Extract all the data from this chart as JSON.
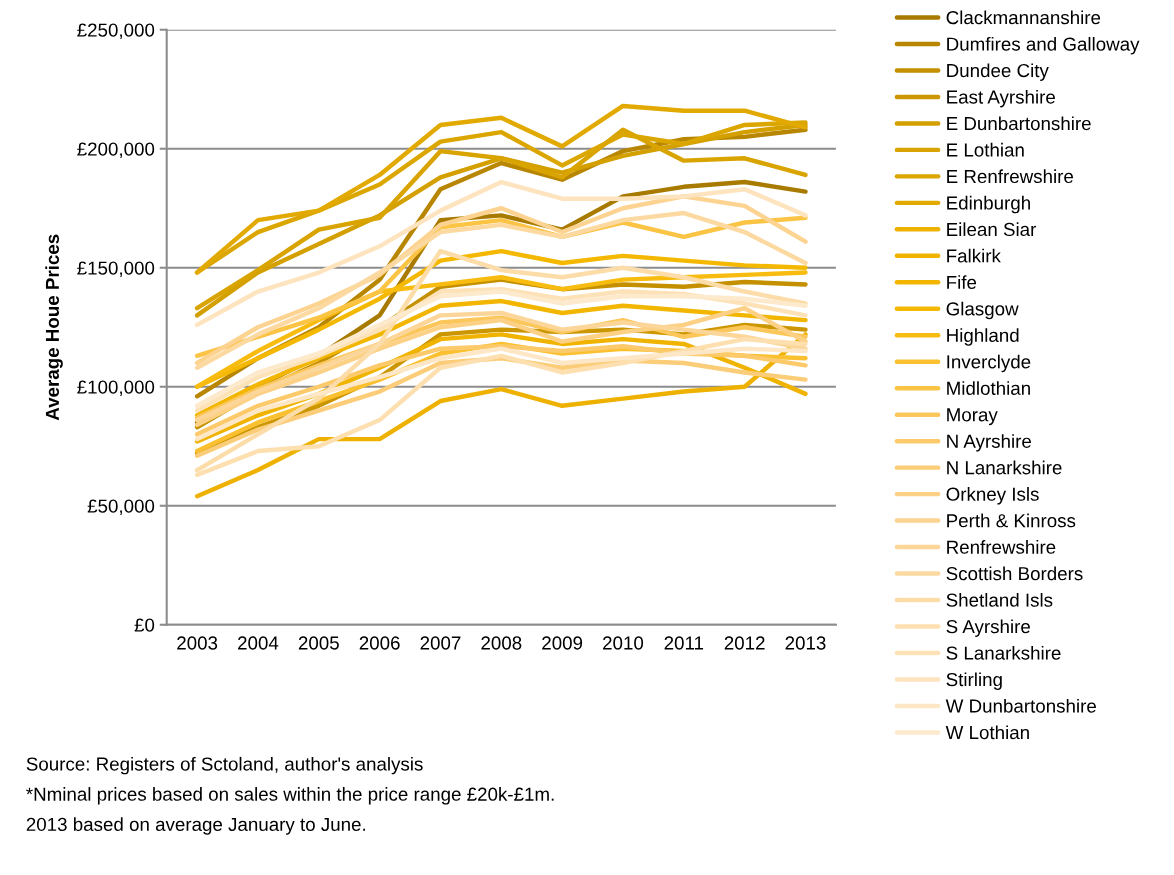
{
  "chart_data": {
    "type": "line",
    "ylabel": "Average Houe Prices",
    "categories": [
      "2003",
      "2004",
      "2005",
      "2006",
      "2007",
      "2008",
      "2009",
      "2010",
      "2011",
      "2012",
      "2013"
    ],
    "ylim": [
      0,
      250000
    ],
    "yticks": [
      {
        "value": 0,
        "label": "£0"
      },
      {
        "value": 50000,
        "label": "£50,000"
      },
      {
        "value": 100000,
        "label": "£100,000"
      },
      {
        "value": 150000,
        "label": "£150,000"
      },
      {
        "value": 200000,
        "label": "£200,000"
      },
      {
        "value": 250000,
        "label": "£250,000"
      }
    ],
    "grid": "y",
    "legend": "right",
    "marker": "none",
    "line_style": "solid",
    "series": [
      {
        "name": "Clackmannanshire",
        "color": "#a87b00",
        "values": [
          85000,
          100000,
          113000,
          130000,
          170000,
          172000,
          166000,
          180000,
          184000,
          186000,
          182000
        ]
      },
      {
        "name": "Dumfires and Galloway",
        "color": "#b88600",
        "values": [
          96000,
          112000,
          125000,
          145000,
          183000,
          194000,
          187000,
          199000,
          204000,
          205000,
          208000
        ]
      },
      {
        "name": "Dundee City",
        "color": "#c49000",
        "values": [
          83000,
          98000,
          110000,
          125000,
          142000,
          145000,
          141000,
          143000,
          142000,
          144000,
          143000
        ]
      },
      {
        "name": "East Ayrshire",
        "color": "#cc9600",
        "values": [
          72000,
          83000,
          92000,
          104000,
          122000,
          124000,
          123000,
          124000,
          122000,
          126000,
          124000
        ]
      },
      {
        "name": "E Dunbartonshire",
        "color": "#d4a000",
        "values": [
          130000,
          148000,
          160000,
          172000,
          188000,
          196000,
          190000,
          197000,
          202000,
          207000,
          210000
        ]
      },
      {
        "name": "E Lothian",
        "color": "#d9a300",
        "values": [
          133000,
          149000,
          166000,
          171000,
          199000,
          196000,
          188000,
          208000,
          195000,
          196000,
          189000
        ]
      },
      {
        "name": "E Renfrewshire",
        "color": "#dca600",
        "values": [
          148000,
          165000,
          174000,
          185000,
          203000,
          207000,
          193000,
          206000,
          202000,
          210000,
          211000
        ]
      },
      {
        "name": "Edinburgh",
        "color": "#e2aa00",
        "values": [
          148000,
          170000,
          174000,
          189000,
          210000,
          213000,
          201000,
          218000,
          216000,
          216000,
          209000
        ]
      },
      {
        "name": "Eilean Siar",
        "color": "#eeb100",
        "values": [
          54000,
          65000,
          78000,
          78000,
          94000,
          99000,
          92000,
          95000,
          98000,
          100000,
          122000
        ]
      },
      {
        "name": "Falkirk",
        "color": "#f0b400",
        "values": [
          77000,
          88000,
          97000,
          108000,
          120000,
          122000,
          118000,
          120000,
          118000,
          108000,
          97000
        ]
      },
      {
        "name": "Fife",
        "color": "#f2b600",
        "values": [
          88000,
          101000,
          112000,
          122000,
          134000,
          136000,
          131000,
          134000,
          132000,
          130000,
          128000
        ]
      },
      {
        "name": "Glasgow",
        "color": "#f5b800",
        "values": [
          100000,
          112000,
          124000,
          137000,
          153000,
          157000,
          152000,
          155000,
          153000,
          151000,
          150000
        ]
      },
      {
        "name": "Highland",
        "color": "#f8bc10",
        "values": [
          100000,
          115000,
          128000,
          140000,
          143000,
          146000,
          141000,
          145000,
          146000,
          147000,
          148000
        ]
      },
      {
        "name": "Inverclyde",
        "color": "#fac030",
        "values": [
          73000,
          85000,
          94000,
          103000,
          114000,
          118000,
          114000,
          116000,
          115000,
          113000,
          112000
        ]
      },
      {
        "name": "Midlothian",
        "color": "#fbc445",
        "values": [
          113000,
          121000,
          129000,
          140000,
          167000,
          170000,
          163000,
          169000,
          163000,
          169000,
          171000
        ]
      },
      {
        "name": "Moray",
        "color": "#fcc75a",
        "values": [
          87000,
          99000,
          109000,
          118000,
          127000,
          129000,
          123000,
          128000,
          121000,
          125000,
          121000
        ]
      },
      {
        "name": "N Ayrshire",
        "color": "#fcca6a",
        "values": [
          80000,
          92000,
          100000,
          109000,
          116000,
          117000,
          115000,
          117000,
          114000,
          113000,
          109000
        ]
      },
      {
        "name": "N Lanarkshire",
        "color": "#fccd78",
        "values": [
          71000,
          82000,
          90000,
          98000,
          110000,
          112000,
          108000,
          111000,
          110000,
          106000,
          103000
        ]
      },
      {
        "name": "Orkney Isls",
        "color": "#fcd085",
        "values": [
          84000,
          97000,
          106000,
          116000,
          125000,
          128000,
          119000,
          123000,
          126000,
          133000,
          119000
        ]
      },
      {
        "name": "Perth & Kinross",
        "color": "#fcd390",
        "values": [
          110000,
          125000,
          135000,
          147000,
          168000,
          175000,
          165000,
          175000,
          180000,
          176000,
          161000
        ]
      },
      {
        "name": "Renfrewshire",
        "color": "#fcd698",
        "values": [
          86000,
          98000,
          108000,
          118000,
          130000,
          131000,
          124000,
          127000,
          124000,
          121000,
          116000
        ]
      },
      {
        "name": "Scottish Borders",
        "color": "#fcd9a0",
        "values": [
          108000,
          122000,
          133000,
          148000,
          165000,
          168000,
          163000,
          170000,
          173000,
          165000,
          152000
        ]
      },
      {
        "name": "Shetland Isls",
        "color": "#fcdca8",
        "values": [
          65000,
          80000,
          95000,
          118000,
          157000,
          149000,
          146000,
          150000,
          146000,
          140000,
          135000
        ]
      },
      {
        "name": "S Ayrshire",
        "color": "#fddfb0",
        "values": [
          63000,
          73000,
          75000,
          86000,
          108000,
          113000,
          106000,
          110000,
          115000,
          120000,
          118000
        ]
      },
      {
        "name": "S Lanarkshire",
        "color": "#fde2b8",
        "values": [
          90000,
          104000,
          113000,
          124000,
          140000,
          141000,
          137000,
          140000,
          139000,
          135000,
          130000
        ]
      },
      {
        "name": "Stirling",
        "color": "#fde4bf",
        "values": [
          126000,
          140000,
          148000,
          159000,
          174000,
          186000,
          179000,
          179000,
          180000,
          183000,
          172000
        ]
      },
      {
        "name": "W Dunbartonshire",
        "color": "#fde7c6",
        "values": [
          78000,
          90000,
          97000,
          104000,
          112000,
          116000,
          110000,
          112000,
          114000,
          116000,
          115000
        ]
      },
      {
        "name": "W Lothian",
        "color": "#fde9cc",
        "values": [
          92000,
          106000,
          114000,
          126000,
          138000,
          140000,
          135000,
          138000,
          138000,
          137000,
          134000
        ]
      }
    ],
    "annotations": [
      "Source: Registers of Sctoland, author's analysis",
      "*Nminal prices based on sales within the price range £20k-£1m.",
      "2013 based on average January to June."
    ]
  }
}
